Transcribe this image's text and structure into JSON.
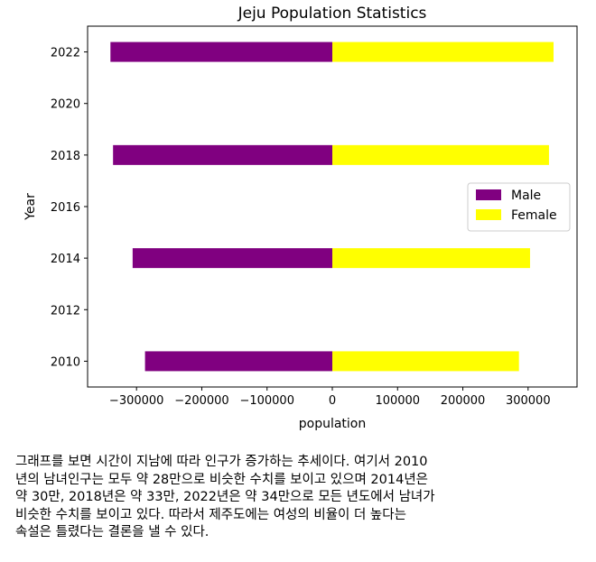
{
  "chart_data": {
    "type": "bar",
    "orientation": "horizontal",
    "title": "Jeju Population Statistics",
    "xlabel": "population",
    "ylabel": "Year",
    "categories": [
      2010,
      2014,
      2018,
      2022
    ],
    "series": [
      {
        "name": "Male",
        "values": [
          -287000,
          -306000,
          -336000,
          -340000
        ],
        "color": "#800080"
      },
      {
        "name": "Female",
        "values": [
          286000,
          303000,
          332000,
          339000
        ],
        "color": "#ffff00"
      }
    ],
    "xlim": [
      -375000,
      375000
    ],
    "ylim": [
      2009,
      2023
    ],
    "xticks": [
      -300000,
      -200000,
      -100000,
      0,
      100000,
      200000,
      300000
    ],
    "xtick_labels": [
      "−300000",
      "−200000",
      "−100000",
      "0",
      "100000",
      "200000",
      "300000"
    ],
    "yticks": [
      2010,
      2012,
      2014,
      2016,
      2018,
      2020,
      2022
    ],
    "ytick_labels": [
      "2010",
      "2012",
      "2014",
      "2016",
      "2018",
      "2020",
      "2022"
    ],
    "grid": false,
    "legend": "center-right"
  },
  "caption": {
    "lines": [
      "그래프를 보면 시간이 지남에 따라 인구가 증가하는 추세이다. 여기서 2010",
      "년의 남녀인구는 모두 약 28만으로 비슷한 수치를 보이고 있으며 2014년은",
      "약 30만, 2018년은 약 33만, 2022년은 약 34만으로 모든 년도에서 남녀가",
      "비슷한 수치를 보이고 있다. 따라서 제주도에는 여성의 비율이 더 높다는",
      "속설은 틀렸다는 결론을 낼 수 있다."
    ]
  }
}
